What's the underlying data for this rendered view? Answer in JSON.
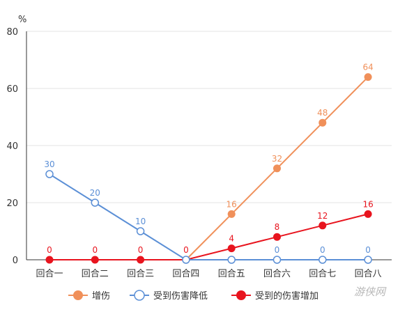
{
  "chart_data": {
    "type": "line",
    "y_unit": "%",
    "categories": [
      "回合一",
      "回合二",
      "回合三",
      "回合四",
      "回合五",
      "回合六",
      "回合七",
      "回合八"
    ],
    "ylim": [
      0,
      80
    ],
    "yticks": [
      0,
      20,
      40,
      60,
      80
    ],
    "grid": true,
    "legend_position": "bottom",
    "series": [
      {
        "name": "增伤",
        "color": "#f0905a",
        "marker": "filled",
        "values": [
          null,
          null,
          null,
          0,
          16,
          32,
          48,
          64
        ],
        "labels": [
          null,
          null,
          null,
          null,
          "16",
          "32",
          "48",
          "64"
        ]
      },
      {
        "name": "受到伤害降低",
        "color": "#5b8fd6",
        "marker": "hollow",
        "values": [
          30,
          20,
          10,
          0,
          0,
          0,
          0,
          0
        ],
        "labels": [
          "30",
          "20",
          "10",
          null,
          null,
          "0",
          "0",
          "0"
        ]
      },
      {
        "name": "受到的伤害增加",
        "color": "#e8141e",
        "marker": "filled",
        "values": [
          0,
          0,
          0,
          0,
          4,
          8,
          12,
          16
        ],
        "labels": [
          "0",
          "0",
          "0",
          "0",
          "4",
          "8",
          "12",
          "16"
        ]
      }
    ]
  },
  "watermark": "游侠网"
}
